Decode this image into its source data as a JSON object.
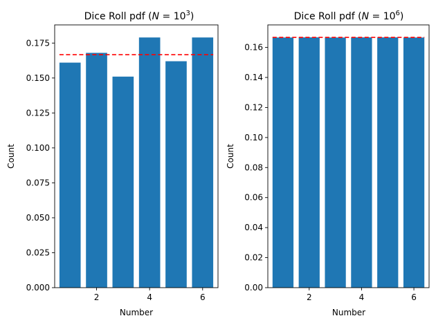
{
  "chart_data": [
    {
      "type": "bar",
      "title": {
        "main": "Dice Roll pdf (",
        "math_var": "N",
        "math_eq": " = 10",
        "exponent": "3",
        "close": ")"
      },
      "xlabel": "Number",
      "ylabel": "Count",
      "x": [
        1,
        2,
        3,
        4,
        5,
        6
      ],
      "values": [
        0.161,
        0.168,
        0.151,
        0.179,
        0.162,
        0.179
      ],
      "reference_line": {
        "y": 0.1667,
        "x_range": [
          0.6,
          6.4
        ],
        "style": "dashed",
        "color": "#ff0000"
      },
      "xlim": [
        0.42,
        6.58
      ],
      "ylim": [
        0,
        0.188
      ],
      "xticks": [
        2,
        4,
        6
      ],
      "yticks": [
        0,
        0.025,
        0.05,
        0.075,
        0.1,
        0.125,
        0.15,
        0.175
      ],
      "ytick_labels": [
        "0.000",
        "0.025",
        "0.050",
        "0.075",
        "0.100",
        "0.125",
        "0.150",
        "0.175"
      ],
      "bar_color": "#1f77b4",
      "grid": false
    },
    {
      "type": "bar",
      "title": {
        "main": "Dice Roll pdf (",
        "math_var": "N",
        "math_eq": " = 10",
        "exponent": "6",
        "close": ")"
      },
      "xlabel": "Number",
      "ylabel": "Count",
      "x": [
        1,
        2,
        3,
        4,
        5,
        6
      ],
      "values": [
        0.1666,
        0.1667,
        0.1666,
        0.1667,
        0.1667,
        0.1666
      ],
      "reference_line": {
        "y": 0.1667,
        "x_range": [
          0.6,
          6.4
        ],
        "style": "dashed",
        "color": "#ff0000"
      },
      "xlim": [
        0.42,
        6.58
      ],
      "ylim": [
        0,
        0.175
      ],
      "xticks": [
        2,
        4,
        6
      ],
      "yticks": [
        0,
        0.02,
        0.04,
        0.06,
        0.08,
        0.1,
        0.12,
        0.14,
        0.16
      ],
      "ytick_labels": [
        "0.00",
        "0.02",
        "0.04",
        "0.06",
        "0.08",
        "0.10",
        "0.12",
        "0.14",
        "0.16"
      ],
      "bar_color": "#1f77b4",
      "grid": false
    }
  ]
}
